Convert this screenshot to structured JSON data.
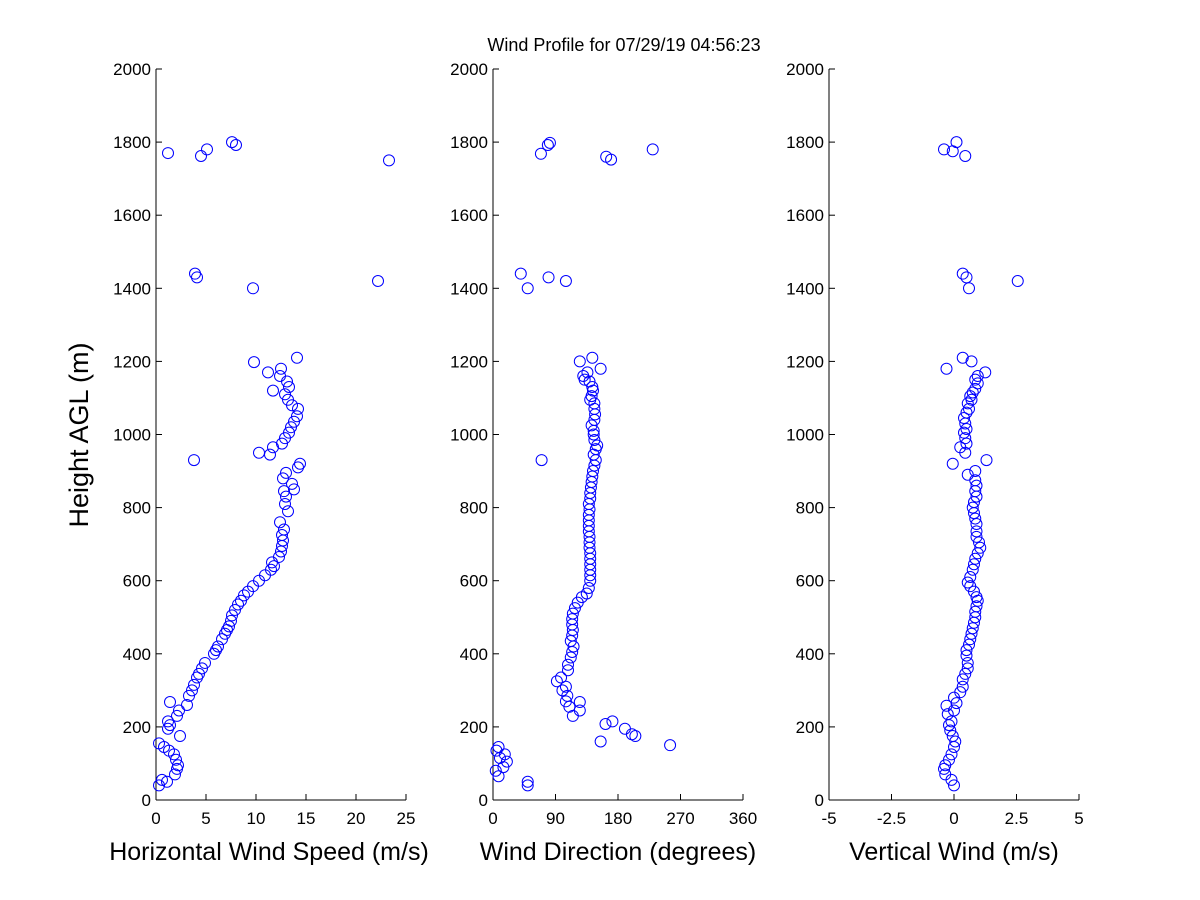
{
  "figure": {
    "title": "Wind Profile for  07/29/19 04:56:23",
    "ylabel": "Height AGL (m)"
  },
  "chart_data": [
    {
      "type": "scatter",
      "xlabel": "Horizontal Wind Speed (m/s)",
      "ylabel": "Height AGL (m)",
      "xlim": [
        0,
        25
      ],
      "ylim": [
        0,
        2000
      ],
      "xticks": [
        0,
        5,
        10,
        15,
        20,
        25
      ],
      "xtick_labels": [
        "0",
        "5",
        "10",
        "15",
        "20",
        "25"
      ],
      "yticks": [
        0,
        200,
        400,
        600,
        800,
        1000,
        1200,
        1400,
        1600,
        1800,
        2000
      ],
      "ytick_labels": [
        "0",
        "200",
        "400",
        "600",
        "800",
        "1000",
        "1200",
        "1400",
        "1600",
        "1800",
        "2000"
      ],
      "grid": false,
      "marker_color": "#0000ff",
      "points": [
        [
          0.3,
          40
        ],
        [
          0.6,
          55
        ],
        [
          1.1,
          50
        ],
        [
          1.9,
          70
        ],
        [
          2.1,
          85
        ],
        [
          2.2,
          95
        ],
        [
          2.0,
          110
        ],
        [
          1.8,
          125
        ],
        [
          1.3,
          135
        ],
        [
          0.8,
          145
        ],
        [
          0.3,
          155
        ],
        [
          2.4,
          175
        ],
        [
          1.2,
          195
        ],
        [
          1.4,
          205
        ],
        [
          1.2,
          215
        ],
        [
          2.1,
          230
        ],
        [
          2.3,
          245
        ],
        [
          3.1,
          260
        ],
        [
          1.4,
          268
        ],
        [
          3.3,
          285
        ],
        [
          3.6,
          300
        ],
        [
          3.8,
          315
        ],
        [
          4.1,
          335
        ],
        [
          4.3,
          345
        ],
        [
          4.6,
          360
        ],
        [
          4.9,
          375
        ],
        [
          5.8,
          400
        ],
        [
          6.0,
          410
        ],
        [
          6.2,
          420
        ],
        [
          6.6,
          440
        ],
        [
          6.9,
          455
        ],
        [
          7.1,
          465
        ],
        [
          7.3,
          475
        ],
        [
          7.5,
          490
        ],
        [
          7.6,
          505
        ],
        [
          7.9,
          520
        ],
        [
          8.2,
          535
        ],
        [
          8.5,
          545
        ],
        [
          8.8,
          560
        ],
        [
          9.2,
          570
        ],
        [
          9.7,
          585
        ],
        [
          10.3,
          600
        ],
        [
          10.9,
          615
        ],
        [
          11.5,
          630
        ],
        [
          11.8,
          640
        ],
        [
          11.6,
          650
        ],
        [
          12.3,
          665
        ],
        [
          12.5,
          680
        ],
        [
          12.6,
          695
        ],
        [
          12.7,
          710
        ],
        [
          12.6,
          725
        ],
        [
          12.8,
          740
        ],
        [
          12.4,
          760
        ],
        [
          13.2,
          790
        ],
        [
          12.9,
          810
        ],
        [
          13.0,
          830
        ],
        [
          12.8,
          845
        ],
        [
          13.8,
          850
        ],
        [
          13.6,
          865
        ],
        [
          12.7,
          880
        ],
        [
          13.0,
          895
        ],
        [
          14.2,
          910
        ],
        [
          14.4,
          920
        ],
        [
          3.8,
          930
        ],
        [
          10.3,
          950
        ],
        [
          11.4,
          945
        ],
        [
          11.7,
          965
        ],
        [
          12.6,
          975
        ],
        [
          12.9,
          990
        ],
        [
          13.3,
          1005
        ],
        [
          13.5,
          1020
        ],
        [
          13.8,
          1035
        ],
        [
          14.1,
          1050
        ],
        [
          14.2,
          1070
        ],
        [
          13.6,
          1080
        ],
        [
          13.2,
          1095
        ],
        [
          12.9,
          1110
        ],
        [
          11.7,
          1120
        ],
        [
          13.3,
          1130
        ],
        [
          13.1,
          1145
        ],
        [
          12.4,
          1160
        ],
        [
          11.2,
          1170
        ],
        [
          12.5,
          1180
        ],
        [
          9.8,
          1198
        ],
        [
          14.1,
          1210
        ],
        [
          3.9,
          1440
        ],
        [
          4.1,
          1430
        ],
        [
          9.7,
          1400
        ],
        [
          22.2,
          1420
        ],
        [
          7.6,
          1800
        ],
        [
          8.0,
          1792
        ],
        [
          5.1,
          1780
        ],
        [
          1.2,
          1770
        ],
        [
          4.5,
          1762
        ],
        [
          23.3,
          1750
        ]
      ]
    },
    {
      "type": "scatter",
      "xlabel": "Wind Direction (degrees)",
      "ylabel": "",
      "xlim": [
        0,
        360
      ],
      "ylim": [
        0,
        2000
      ],
      "xticks": [
        0,
        90,
        180,
        270,
        360
      ],
      "xtick_labels": [
        "0",
        "90",
        "180",
        "270",
        "360"
      ],
      "yticks": [
        0,
        200,
        400,
        600,
        800,
        1000,
        1200,
        1400,
        1600,
        1800,
        2000
      ],
      "ytick_labels": [
        "0",
        "200",
        "400",
        "600",
        "800",
        "1000",
        "1200",
        "1400",
        "1600",
        "1800",
        "2000"
      ],
      "grid": false,
      "marker_color": "#0000ff",
      "points": [
        [
          50,
          40
        ],
        [
          50,
          50
        ],
        [
          8,
          65
        ],
        [
          4,
          80
        ],
        [
          15,
          90
        ],
        [
          20,
          105
        ],
        [
          10,
          115
        ],
        [
          17,
          125
        ],
        [
          5,
          135
        ],
        [
          8,
          145
        ],
        [
          255,
          150
        ],
        [
          155,
          160
        ],
        [
          205,
          175
        ],
        [
          200,
          180
        ],
        [
          190,
          195
        ],
        [
          172,
          215
        ],
        [
          162,
          208
        ],
        [
          115,
          230
        ],
        [
          125,
          245
        ],
        [
          110,
          255
        ],
        [
          125,
          268
        ],
        [
          105,
          270
        ],
        [
          107,
          285
        ],
        [
          100,
          300
        ],
        [
          105,
          310
        ],
        [
          92,
          325
        ],
        [
          98,
          335
        ],
        [
          108,
          355
        ],
        [
          108,
          370
        ],
        [
          112,
          390
        ],
        [
          114,
          405
        ],
        [
          116,
          420
        ],
        [
          112,
          435
        ],
        [
          114,
          450
        ],
        [
          115,
          465
        ],
        [
          114,
          480
        ],
        [
          114,
          495
        ],
        [
          115,
          510
        ],
        [
          118,
          525
        ],
        [
          122,
          540
        ],
        [
          128,
          555
        ],
        [
          135,
          565
        ],
        [
          138,
          580
        ],
        [
          140,
          600
        ],
        [
          140,
          615
        ],
        [
          140,
          630
        ],
        [
          140,
          645
        ],
        [
          140,
          660
        ],
        [
          140,
          675
        ],
        [
          139,
          690
        ],
        [
          139,
          705
        ],
        [
          139,
          720
        ],
        [
          138,
          735
        ],
        [
          138,
          750
        ],
        [
          138,
          765
        ],
        [
          138,
          780
        ],
        [
          139,
          795
        ],
        [
          138,
          810
        ],
        [
          140,
          825
        ],
        [
          140,
          840
        ],
        [
          141,
          855
        ],
        [
          142,
          870
        ],
        [
          143,
          885
        ],
        [
          144,
          900
        ],
        [
          146,
          915
        ],
        [
          148,
          930
        ],
        [
          70,
          930
        ],
        [
          145,
          945
        ],
        [
          148,
          960
        ],
        [
          150,
          970
        ],
        [
          146,
          985
        ],
        [
          145,
          1000
        ],
        [
          145,
          1010
        ],
        [
          142,
          1025
        ],
        [
          146,
          1040
        ],
        [
          147,
          1055
        ],
        [
          146,
          1070
        ],
        [
          146,
          1085
        ],
        [
          140,
          1095
        ],
        [
          142,
          1105
        ],
        [
          144,
          1120
        ],
        [
          143,
          1130
        ],
        [
          139,
          1145
        ],
        [
          132,
          1150
        ],
        [
          130,
          1160
        ],
        [
          136,
          1170
        ],
        [
          155,
          1180
        ],
        [
          125,
          1200
        ],
        [
          143,
          1210
        ],
        [
          40,
          1440
        ],
        [
          80,
          1430
        ],
        [
          50,
          1400
        ],
        [
          105,
          1420
        ],
        [
          82,
          1798
        ],
        [
          79,
          1792
        ],
        [
          230,
          1780
        ],
        [
          69,
          1768
        ],
        [
          163,
          1760
        ],
        [
          170,
          1752
        ]
      ]
    },
    {
      "type": "scatter",
      "xlabel": "Vertical Wind (m/s)",
      "ylabel": "",
      "xlim": [
        -5,
        5
      ],
      "ylim": [
        0,
        2000
      ],
      "xticks": [
        -5,
        -2.5,
        0,
        2.5,
        5
      ],
      "xtick_labels": [
        "-5",
        "-2.5",
        "0",
        "2.5",
        "5"
      ],
      "yticks": [
        0,
        200,
        400,
        600,
        800,
        1000,
        1200,
        1400,
        1600,
        1800,
        2000
      ],
      "ytick_labels": [
        "0",
        "200",
        "400",
        "600",
        "800",
        "1000",
        "1200",
        "1400",
        "1600",
        "1800",
        "2000"
      ],
      "grid": false,
      "marker_color": "#0000ff",
      "points": [
        [
          0.0,
          40
        ],
        [
          -0.1,
          55
        ],
        [
          -0.35,
          70
        ],
        [
          -0.4,
          85
        ],
        [
          -0.35,
          95
        ],
        [
          -0.2,
          110
        ],
        [
          -0.1,
          125
        ],
        [
          0.0,
          145
        ],
        [
          0.05,
          160
        ],
        [
          -0.05,
          175
        ],
        [
          -0.15,
          190
        ],
        [
          -0.2,
          205
        ],
        [
          -0.1,
          215
        ],
        [
          -0.25,
          235
        ],
        [
          0.0,
          245
        ],
        [
          -0.3,
          258
        ],
        [
          0.1,
          265
        ],
        [
          0.0,
          280
        ],
        [
          0.25,
          295
        ],
        [
          0.35,
          310
        ],
        [
          0.35,
          330
        ],
        [
          0.45,
          345
        ],
        [
          0.55,
          360
        ],
        [
          0.55,
          375
        ],
        [
          0.5,
          395
        ],
        [
          0.5,
          410
        ],
        [
          0.6,
          425
        ],
        [
          0.65,
          440
        ],
        [
          0.7,
          455
        ],
        [
          0.75,
          470
        ],
        [
          0.8,
          485
        ],
        [
          0.85,
          500
        ],
        [
          0.85,
          515
        ],
        [
          0.9,
          530
        ],
        [
          0.95,
          545
        ],
        [
          0.9,
          555
        ],
        [
          0.8,
          570
        ],
        [
          0.65,
          585
        ],
        [
          0.55,
          595
        ],
        [
          0.65,
          610
        ],
        [
          0.75,
          630
        ],
        [
          0.8,
          645
        ],
        [
          0.85,
          660
        ],
        [
          0.95,
          675
        ],
        [
          1.05,
          690
        ],
        [
          1.0,
          705
        ],
        [
          0.9,
          720
        ],
        [
          0.9,
          735
        ],
        [
          0.9,
          755
        ],
        [
          0.85,
          770
        ],
        [
          0.8,
          785
        ],
        [
          0.75,
          800
        ],
        [
          0.8,
          815
        ],
        [
          0.9,
          830
        ],
        [
          0.85,
          845
        ],
        [
          0.9,
          860
        ],
        [
          0.85,
          875
        ],
        [
          0.55,
          890
        ],
        [
          0.85,
          900
        ],
        [
          1.3,
          930
        ],
        [
          -0.05,
          920
        ],
        [
          0.45,
          950
        ],
        [
          0.25,
          965
        ],
        [
          0.5,
          975
        ],
        [
          0.45,
          990
        ],
        [
          0.4,
          1005
        ],
        [
          0.5,
          1015
        ],
        [
          0.45,
          1030
        ],
        [
          0.4,
          1045
        ],
        [
          0.5,
          1060
        ],
        [
          0.6,
          1070
        ],
        [
          0.55,
          1085
        ],
        [
          0.7,
          1095
        ],
        [
          0.65,
          1105
        ],
        [
          0.75,
          1115
        ],
        [
          0.85,
          1125
        ],
        [
          0.95,
          1140
        ],
        [
          0.85,
          1150
        ],
        [
          0.95,
          1160
        ],
        [
          1.25,
          1170
        ],
        [
          -0.3,
          1180
        ],
        [
          0.7,
          1200
        ],
        [
          0.35,
          1210
        ],
        [
          2.55,
          1420
        ],
        [
          0.35,
          1440
        ],
        [
          0.5,
          1430
        ],
        [
          0.6,
          1400
        ],
        [
          0.1,
          1800
        ],
        [
          -0.4,
          1780
        ],
        [
          -0.05,
          1775
        ],
        [
          0.45,
          1762
        ]
      ]
    }
  ]
}
